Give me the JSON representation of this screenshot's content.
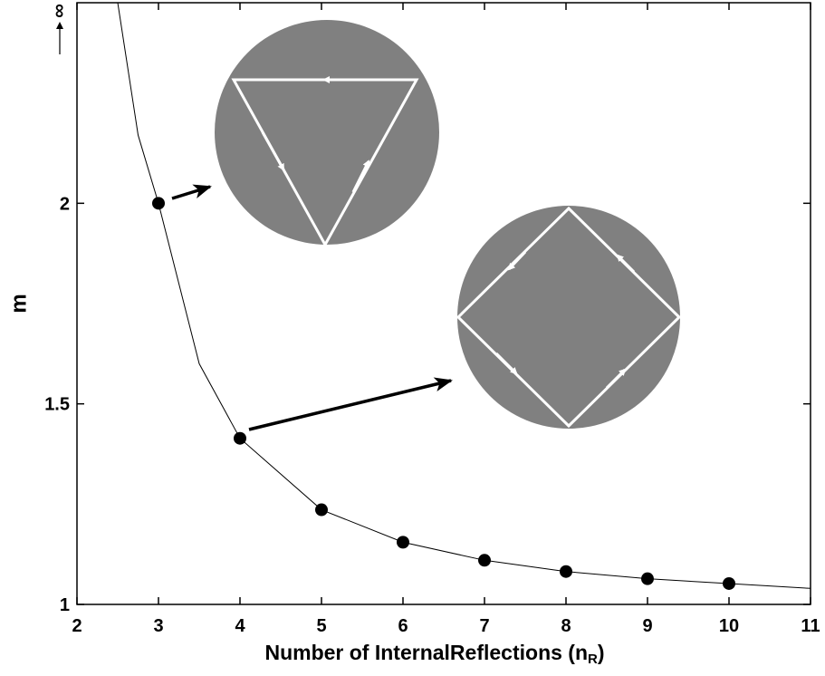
{
  "chart_data": {
    "type": "scatter",
    "xlabel": {
      "text": "Number of InternalReflections (n",
      "subscript": "R",
      "suffix": ")"
    },
    "ylabel": "m",
    "annotation": "∞",
    "xlim": [
      2,
      11
    ],
    "xticks": [
      2,
      3,
      4,
      5,
      6,
      7,
      8,
      9,
      10,
      11
    ],
    "ylim": [
      1,
      2.5
    ],
    "yticks": [
      1,
      1.5,
      2
    ],
    "points": {
      "x": [
        3,
        4,
        5,
        6,
        7,
        8,
        9,
        10
      ],
      "values": [
        2,
        1.414,
        1.236,
        1.155,
        1.11,
        1.082,
        1.064,
        1.052
      ],
      "color": "#000000"
    },
    "curve": {
      "x": [
        2.5,
        2.75,
        3,
        3.5,
        4,
        5,
        6,
        7,
        8,
        9,
        10,
        11
      ],
      "values": [
        2.5,
        2.17,
        2.0,
        1.6,
        1.414,
        1.236,
        1.155,
        1.11,
        1.082,
        1.064,
        1.052,
        1.04
      ],
      "color": "#000000"
    }
  }
}
